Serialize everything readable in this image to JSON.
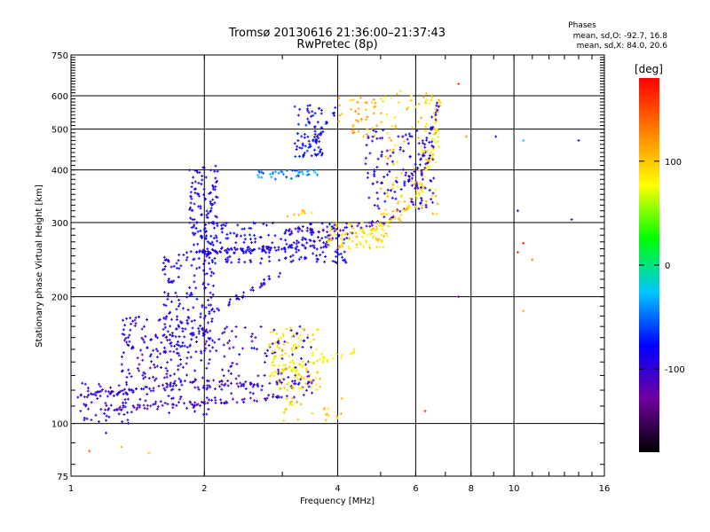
{
  "chart_data": {
    "type": "scatter",
    "title": "Tromsø 20130616 21:36:00–21:37:43",
    "subtitle": "RwPretec (8p)",
    "xlabel": "Frequency [MHz]",
    "ylabel": "Stationary phase Virtual Height [km]",
    "x_scale": "log",
    "y_scale": "log",
    "xlim": [
      1,
      16
    ],
    "ylim": [
      75,
      750
    ],
    "x_ticks": [
      1,
      2,
      4,
      6,
      8,
      10,
      16
    ],
    "y_ticks": [
      75,
      100,
      200,
      300,
      400,
      500,
      600,
      750
    ],
    "x_gridlines": [
      2,
      4,
      6,
      8,
      10
    ],
    "y_gridlines": [
      100,
      200,
      300,
      400,
      500,
      600
    ],
    "grid": true,
    "stats_heading": "Phases",
    "stats_lines": [
      "mean, sd,O: -92.7, 16.8",
      "mean, sd,X:  84.0, 20.6"
    ],
    "colorbar": {
      "unit": "[deg]",
      "min": -180,
      "max": 180,
      "ticks": [
        100,
        0,
        -100
      ],
      "colors": [
        "#000000",
        "#7000a0",
        "#0000ff",
        "#00c8ff",
        "#00ff00",
        "#ffff00",
        "#ff8000",
        "#ff0000"
      ]
    },
    "traces": [
      {
        "x": [
          1.0,
          1.6,
          2.0
        ],
        "y": [
          115,
          122,
          128
        ],
        "phase": -100
      },
      {
        "x": [
          1.2,
          1.6,
          2.0,
          3.0
        ],
        "y": [
          108,
          110,
          112,
          116
        ],
        "phase": -110
      },
      {
        "x": [
          2.0,
          2.8,
          3.5
        ],
        "y": [
          122,
          124,
          125
        ],
        "phase": -105
      },
      {
        "x": [
          1.6,
          1.8,
          2.0,
          2.5,
          3.0,
          3.8
        ],
        "y": [
          240,
          250,
          255,
          260,
          262,
          264
        ],
        "phase": -90
      },
      {
        "x": [
          2.0,
          2.5,
          3.0,
          3.6,
          4.3
        ],
        "y": [
          255,
          258,
          262,
          275,
          280
        ],
        "phase": -95
      },
      {
        "x": [
          3.0,
          4.0,
          5.0,
          5.8,
          6.4
        ],
        "y": [
          285,
          290,
          300,
          330,
          420
        ],
        "phase": -110
      },
      {
        "x": [
          4.3,
          5.0,
          5.5,
          6.0,
          6.5,
          6.8
        ],
        "y": [
          280,
          290,
          310,
          340,
          420,
          600
        ],
        "phase": 90
      },
      {
        "x": [
          2.0,
          2.4,
          3.0
        ],
        "y": [
          180,
          200,
          230
        ],
        "phase": -90
      },
      {
        "x": [
          3.1,
          3.5
        ],
        "y": [
          310,
          320
        ],
        "phase": 95
      },
      {
        "x": [
          2.8,
          3.6,
          4.4
        ],
        "y": [
          130,
          140,
          150
        ],
        "phase": 80
      },
      {
        "x": [
          3.3,
          3.6,
          4.0
        ],
        "y": [
          430,
          480,
          560
        ],
        "phase": -70
      },
      {
        "x": [
          5.5,
          6.2,
          6.8
        ],
        "y": [
          360,
          420,
          600
        ],
        "phase": -100
      }
    ],
    "clusters": [
      {
        "x": [
          1.05,
          1.35
        ],
        "y": [
          100,
          125
        ],
        "phase": -100,
        "n": 60
      },
      {
        "x": [
          1.3,
          2.05
        ],
        "y": [
          105,
          180
        ],
        "phase": -100,
        "n": 220
      },
      {
        "x": [
          1.6,
          2.1
        ],
        "y": [
          150,
          250
        ],
        "phase": -90,
        "n": 140
      },
      {
        "x": [
          1.85,
          2.15
        ],
        "y": [
          250,
          410
        ],
        "phase": -90,
        "n": 120
      },
      {
        "x": [
          2.05,
          3.5
        ],
        "y": [
          115,
          170
        ],
        "phase": -100,
        "n": 120
      },
      {
        "x": [
          2.8,
          3.7
        ],
        "y": [
          120,
          170
        ],
        "phase": 85,
        "n": 110
      },
      {
        "x": [
          2.6,
          3.6
        ],
        "y": [
          380,
          400
        ],
        "phase": -40,
        "n": 40
      },
      {
        "x": [
          3.2,
          3.7
        ],
        "y": [
          430,
          570
        ],
        "phase": -80,
        "n": 70
      },
      {
        "x": [
          4.0,
          4.9
        ],
        "y": [
          480,
          600
        ],
        "phase": 110,
        "n": 40
      },
      {
        "x": [
          2.0,
          4.2
        ],
        "y": [
          240,
          300
        ],
        "phase": -85,
        "n": 180
      },
      {
        "x": [
          3.8,
          5.2
        ],
        "y": [
          260,
          300
        ],
        "phase": 90,
        "n": 80
      },
      {
        "x": [
          5.0,
          6.8
        ],
        "y": [
          300,
          620
        ],
        "phase": 95,
        "n": 120
      },
      {
        "x": [
          4.6,
          6.6
        ],
        "y": [
          320,
          500
        ],
        "phase": -90,
        "n": 110
      },
      {
        "x": [
          3.0,
          4.1
        ],
        "y": [
          100,
          115
        ],
        "phase": 100,
        "n": 25
      }
    ],
    "isolated_points": [
      {
        "x": 7.5,
        "y": 640,
        "phase": 160
      },
      {
        "x": 7.8,
        "y": 480,
        "phase": 120
      },
      {
        "x": 9.1,
        "y": 480,
        "phase": -100
      },
      {
        "x": 10.5,
        "y": 470,
        "phase": -20
      },
      {
        "x": 14.0,
        "y": 470,
        "phase": -100
      },
      {
        "x": 10.2,
        "y": 320,
        "phase": -100
      },
      {
        "x": 13.5,
        "y": 305,
        "phase": -100
      },
      {
        "x": 10.5,
        "y": 268,
        "phase": 170
      },
      {
        "x": 10.2,
        "y": 255,
        "phase": 160
      },
      {
        "x": 11.0,
        "y": 245,
        "phase": 130
      },
      {
        "x": 7.5,
        "y": 200,
        "phase": -130
      },
      {
        "x": 10.5,
        "y": 185,
        "phase": 110
      },
      {
        "x": 6.3,
        "y": 107,
        "phase": 160
      },
      {
        "x": 1.3,
        "y": 88,
        "phase": 110
      },
      {
        "x": 1.5,
        "y": 85,
        "phase": 100
      },
      {
        "x": 1.1,
        "y": 86,
        "phase": 140
      },
      {
        "x": 1.2,
        "y": 95,
        "phase": -90
      }
    ]
  }
}
